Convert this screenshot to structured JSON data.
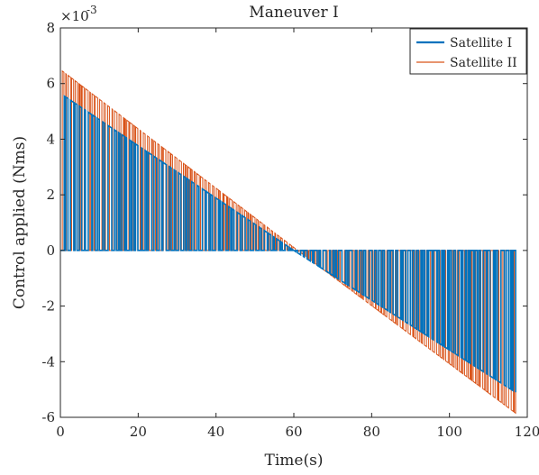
{
  "chart_data": {
    "type": "line",
    "title": "Maneuver I",
    "xlabel": "Time(s)",
    "ylabel": "Control applied (Nms)",
    "exponent_base": "×10",
    "exponent_power": "-3",
    "xlim": [
      0,
      120
    ],
    "ylim": [
      -6,
      8
    ],
    "x_ticks": [
      0,
      20,
      40,
      60,
      80,
      100,
      120
    ],
    "y_ticks": [
      -6,
      -4,
      -2,
      0,
      2,
      4,
      6,
      8
    ],
    "x_tick_labels": [
      "0",
      "20",
      "40",
      "60",
      "80",
      "100",
      "120"
    ],
    "y_tick_labels": [
      "-6",
      "-4",
      "-2",
      "0",
      "2",
      "4",
      "6",
      "8"
    ],
    "grid": false,
    "legend_position": "top-right",
    "series": [
      {
        "name": "Satellite I",
        "color": "#0072BD",
        "envelope_x": [
          0,
          1,
          60,
          117
        ],
        "envelope_y": [
          0,
          5.55,
          0,
          -5.1
        ],
        "x_end": 117
      },
      {
        "name": "Satellite II",
        "color": "#D95319",
        "envelope_x": [
          0,
          0.5,
          61,
          117
        ],
        "envelope_y": [
          0,
          6.45,
          0,
          -5.85
        ],
        "x_end": 117
      }
    ]
  }
}
